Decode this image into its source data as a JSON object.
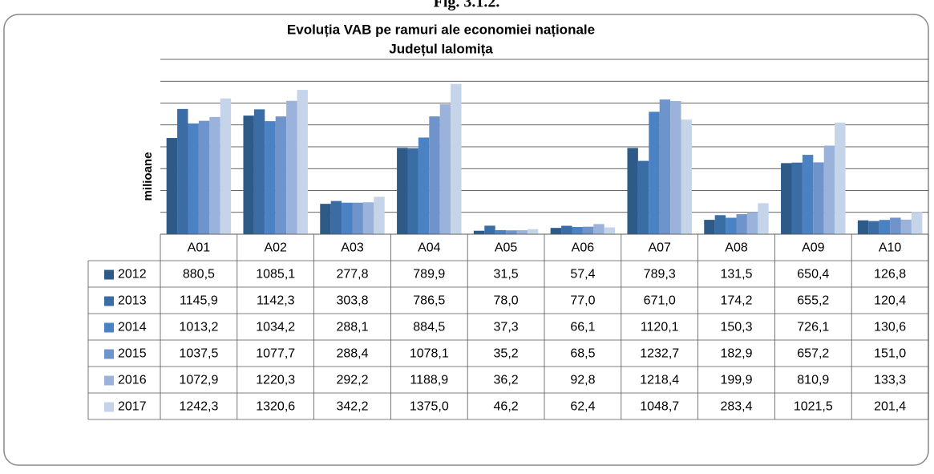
{
  "figure_label": "Fig. 3.1.2.",
  "chart_data": {
    "type": "bar",
    "title": "Evoluția VAB pe ramuri ale economiei naționale",
    "subtitle": "Județul Ialomița",
    "y_label": "milioane",
    "categories": [
      "A01",
      "A02",
      "A03",
      "A04",
      "A05",
      "A06",
      "A07",
      "A08",
      "A09",
      "A10"
    ],
    "ylim": [
      0,
      1600
    ],
    "yticks": [
      0,
      200,
      400,
      600,
      800,
      1000,
      1200,
      1400,
      1600
    ],
    "grid": true,
    "series": [
      {
        "name": "2012",
        "color": "#2e5a88",
        "values": [
          880.5,
          1085.1,
          277.8,
          789.9,
          31.5,
          57.4,
          789.3,
          131.5,
          650.4,
          126.8
        ],
        "value_labels": [
          "880,5",
          "1085,1",
          "277,8",
          "789,9",
          "31,5",
          "57,4",
          "789,3",
          "131,5",
          "650,4",
          "126,8"
        ]
      },
      {
        "name": "2013",
        "color": "#3a6ca6",
        "values": [
          1145.9,
          1142.3,
          303.8,
          786.5,
          78.0,
          77.0,
          671.0,
          174.2,
          655.2,
          120.4
        ],
        "value_labels": [
          "1145,9",
          "1142,3",
          "303,8",
          "786,5",
          "78,0",
          "77,0",
          "671,0",
          "174,2",
          "655,2",
          "120,4"
        ]
      },
      {
        "name": "2014",
        "color": "#4a82c4",
        "values": [
          1013.2,
          1034.2,
          288.1,
          884.5,
          37.3,
          66.1,
          1120.1,
          150.3,
          726.1,
          130.6
        ],
        "value_labels": [
          "1013,2",
          "1034,2",
          "288,1",
          "884,5",
          "37,3",
          "66,1",
          "1120,1",
          "150,3",
          "726,1",
          "130,6"
        ]
      },
      {
        "name": "2015",
        "color": "#6f94cc",
        "values": [
          1037.5,
          1077.7,
          288.4,
          1078.1,
          35.2,
          68.5,
          1232.7,
          182.9,
          657.2,
          151.0
        ],
        "value_labels": [
          "1037,5",
          "1077,7",
          "288,4",
          "1078,1",
          "35,2",
          "68,5",
          "1232,7",
          "182,9",
          "657,2",
          "151,0"
        ]
      },
      {
        "name": "2016",
        "color": "#9bb3da",
        "values": [
          1072.9,
          1220.3,
          292.2,
          1188.9,
          36.2,
          92.8,
          1218.4,
          199.9,
          810.9,
          133.3
        ],
        "value_labels": [
          "1072,9",
          "1220,3",
          "292,2",
          "1188,9",
          "36,2",
          "92,8",
          "1218,4",
          "199,9",
          "810,9",
          "133,3"
        ]
      },
      {
        "name": "2017",
        "color": "#c6d4ea",
        "values": [
          1242.3,
          1320.6,
          342.2,
          1375.0,
          46.2,
          62.4,
          1048.7,
          283.4,
          1021.5,
          201.4
        ],
        "value_labels": [
          "1242,3",
          "1320,6",
          "342,2",
          "1375,0",
          "46,2",
          "62,4",
          "1048,7",
          "283,4",
          "1021,5",
          "201,4"
        ]
      }
    ]
  }
}
